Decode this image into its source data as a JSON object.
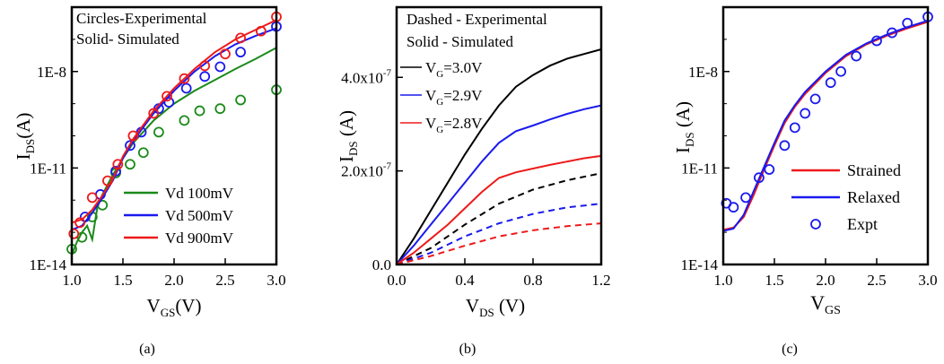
{
  "chart_data": [
    {
      "panel_label": "(a)",
      "type": "line",
      "xlabel_main": "V",
      "xlabel_sub": "GS",
      "xlabel_tail": "(V)",
      "ylabel_main": "I",
      "ylabel_sub": "DS",
      "ylabel_tail": "(A)",
      "xlim": [
        1.0,
        3.0
      ],
      "ylim": [
        1e-14,
        1e-06
      ],
      "yscale": "log",
      "x_ticks": [
        1.0,
        1.5,
        2.0,
        2.5,
        3.0
      ],
      "x_tick_labels": [
        "1.0",
        "1.5",
        "2.0",
        "2.5",
        "3.0"
      ],
      "y_ticks": [
        1e-14,
        1e-11,
        1e-08
      ],
      "y_tick_labels": [
        "1E-14",
        "1E-11",
        "1E-8"
      ],
      "annotations": [
        "Circles-Experimental",
        "Solid- Simulated"
      ],
      "legend_position": "bottom-right",
      "series": [
        {
          "name": "Vd 100mV",
          "color": "#1a8a1a",
          "x": [
            1.0,
            1.05,
            1.1,
            1.15,
            1.2,
            1.25,
            1.3,
            1.4,
            1.5,
            1.6,
            1.8,
            2.0,
            2.2,
            2.4,
            2.6,
            2.8,
            3.0
          ],
          "y": [
            2e-14,
            5e-14,
            1e-13,
            1.6e-13,
            6e-14,
            6e-13,
            1.5e-12,
            6e-12,
            2e-11,
            6e-11,
            3e-10,
            1e-09,
            2.5e-09,
            5.5e-09,
            1.2e-08,
            2.5e-08,
            5.5e-08
          ],
          "expt_x": [
            1.0,
            1.1,
            1.2,
            1.3,
            1.43,
            1.57,
            1.7,
            1.85,
            2.1,
            2.25,
            2.45,
            2.65,
            3.0
          ],
          "expt_y": [
            3e-14,
            7e-14,
            3e-13,
            7e-13,
            7e-12,
            1.3e-11,
            3e-11,
            1.3e-10,
            3e-10,
            6e-10,
            7e-10,
            1.3e-09,
            2.7e-09
          ]
        },
        {
          "name": "Vd 500mV",
          "color": "#1a1aee",
          "x": [
            1.0,
            1.1,
            1.2,
            1.3,
            1.4,
            1.5,
            1.6,
            1.8,
            2.0,
            2.2,
            2.4,
            2.6,
            2.8,
            3.0
          ],
          "y": [
            1.2e-13,
            1.6e-13,
            4e-13,
            1.2e-12,
            4e-12,
            2e-11,
            7e-11,
            5e-10,
            2.5e-09,
            1e-08,
            3e-08,
            7e-08,
            1.3e-07,
            2.2e-07
          ],
          "expt_x": [
            1.13,
            1.28,
            1.43,
            1.57,
            1.68,
            1.85,
            1.95,
            2.12,
            2.3,
            2.45,
            2.65,
            3.0
          ],
          "expt_y": [
            3e-13,
            1.5e-12,
            8e-12,
            5e-11,
            1.3e-10,
            7e-10,
            1.1e-09,
            3e-09,
            7e-09,
            1.4e-08,
            4e-08,
            2.5e-07
          ]
        },
        {
          "name": "Vd 900mV",
          "color": "#ee1a1a",
          "x": [
            1.0,
            1.1,
            1.2,
            1.3,
            1.4,
            1.5,
            1.6,
            1.8,
            2.0,
            2.2,
            2.4,
            2.6,
            2.8,
            3.0
          ],
          "y": [
            2e-13,
            2.5e-13,
            5e-13,
            1.4e-12,
            4.5e-12,
            2.3e-11,
            8e-11,
            6e-10,
            3e-09,
            1.2e-08,
            4e-08,
            1e-07,
            2e-07,
            4e-07
          ],
          "expt_x": [
            1.02,
            1.08,
            1.2,
            1.35,
            1.45,
            1.6,
            1.8,
            1.93,
            2.1,
            2.3,
            2.5,
            2.65,
            2.85,
            3.0
          ],
          "expt_y": [
            9e-14,
            2e-13,
            1.2e-12,
            4e-12,
            1.3e-11,
            1e-10,
            5e-10,
            1.7e-09,
            6e-09,
            1.5e-08,
            3.5e-08,
            1.1e-07,
            1.8e-07,
            5e-07
          ]
        }
      ]
    },
    {
      "panel_label": "(b)",
      "type": "line",
      "xlabel_main": "V",
      "xlabel_sub": "DS",
      "xlabel_tail": " (V)",
      "ylabel_main": "I",
      "ylabel_sub": "DS",
      "ylabel_tail": " (A)",
      "xlim": [
        0.0,
        1.2
      ],
      "ylim": [
        0.0,
        5.5e-07
      ],
      "yscale": "linear",
      "x_ticks": [
        0.0,
        0.4,
        0.8,
        1.2
      ],
      "x_tick_labels": [
        "0.0",
        "0.4",
        "0.8",
        "1.2"
      ],
      "y_ticks": [
        0.0,
        2e-07,
        4e-07
      ],
      "y_tick_labels": [
        {
          "base": "0.0",
          "exp": ""
        },
        {
          "base": "2.0x10",
          "exp": "-7"
        },
        {
          "base": "4.0x10",
          "exp": "-7"
        }
      ],
      "annotations": [
        "Dashed - Experimental",
        "Solid - Simulated"
      ],
      "legend_position": "top-left",
      "series": [
        {
          "name_main": "V",
          "name_sub": "G",
          "name_tail": "=3.0V",
          "color": "#000000",
          "x": [
            0.0,
            0.1,
            0.2,
            0.3,
            0.4,
            0.5,
            0.6,
            0.7,
            0.8,
            0.9,
            1.0,
            1.1,
            1.2
          ],
          "y": [
            0,
            5.5e-08,
            1.15e-07,
            1.75e-07,
            2.35e-07,
            2.9e-07,
            3.4e-07,
            3.8e-07,
            4.05e-07,
            4.25e-07,
            4.4e-07,
            4.5e-07,
            4.6e-07
          ],
          "expt_x": [
            0.0,
            0.2,
            0.4,
            0.6,
            0.8,
            1.0,
            1.2
          ],
          "expt_y": [
            0,
            3.5e-08,
            8.5e-08,
            1.3e-07,
            1.6e-07,
            1.8e-07,
            1.95e-07
          ]
        },
        {
          "name_main": "V",
          "name_sub": "G",
          "name_tail": "=2.9V",
          "color": "#1a1aee",
          "x": [
            0.0,
            0.1,
            0.2,
            0.3,
            0.4,
            0.5,
            0.6,
            0.7,
            0.8,
            0.9,
            1.0,
            1.1,
            1.2
          ],
          "y": [
            0,
            4e-08,
            8.5e-08,
            1.3e-07,
            1.75e-07,
            2.2e-07,
            2.6e-07,
            2.85e-07,
            2.97e-07,
            3.1e-07,
            3.22e-07,
            3.32e-07,
            3.4e-07
          ],
          "expt_x": [
            0.0,
            0.2,
            0.4,
            0.6,
            0.8,
            1.0,
            1.2
          ],
          "expt_y": [
            0,
            2.5e-08,
            6e-08,
            8.8e-08,
            1.08e-07,
            1.22e-07,
            1.3e-07
          ]
        },
        {
          "name_main": "V",
          "name_sub": "G",
          "name_tail": "=2.8V",
          "color": "#ee1a1a",
          "x": [
            0.0,
            0.1,
            0.2,
            0.3,
            0.4,
            0.5,
            0.6,
            0.7,
            0.8,
            0.9,
            1.0,
            1.1,
            1.2
          ],
          "y": [
            0,
            2.5e-08,
            5.5e-08,
            8.5e-08,
            1.2e-07,
            1.55e-07,
            1.85e-07,
            1.97e-07,
            2.05e-07,
            2.13e-07,
            2.2e-07,
            2.27e-07,
            2.32e-07
          ],
          "expt_x": [
            0.0,
            0.2,
            0.4,
            0.6,
            0.8,
            1.0,
            1.2
          ],
          "expt_y": [
            0,
            1.8e-08,
            4e-08,
            6e-08,
            7.3e-08,
            8.2e-08,
            8.8e-08
          ]
        }
      ]
    },
    {
      "panel_label": "(c)",
      "type": "line",
      "xlabel_main": "V",
      "xlabel_sub": "GS",
      "xlabel_tail": "",
      "ylabel_main": "I",
      "ylabel_sub": "DS",
      "ylabel_tail": " (A)",
      "xlim": [
        1.0,
        3.0
      ],
      "ylim": [
        1e-14,
        1e-06
      ],
      "yscale": "log",
      "x_ticks": [
        1.0,
        1.5,
        2.0,
        2.5,
        3.0
      ],
      "x_tick_labels": [
        "1.0",
        "1.5",
        "2.0",
        "2.5",
        "3.0"
      ],
      "y_ticks": [
        1e-14,
        1e-11,
        1e-08
      ],
      "y_tick_labels": [
        "1E-14",
        "1E-11",
        "1E-8"
      ],
      "legend_position": "bottom-right",
      "series": [
        {
          "name": "Strained",
          "color": "#ee1a1a",
          "style": "line",
          "x": [
            1.0,
            1.1,
            1.2,
            1.3,
            1.4,
            1.5,
            1.6,
            1.7,
            1.8,
            2.0,
            2.2,
            2.4,
            2.6,
            2.8,
            3.0
          ],
          "y": [
            1.2e-13,
            1.4e-13,
            3e-13,
            1.5e-12,
            9e-12,
            5e-11,
            2.5e-10,
            8e-10,
            2e-09,
            9e-09,
            3e-08,
            7e-08,
            1.3e-07,
            2.2e-07,
            3.5e-07
          ]
        },
        {
          "name": "Relaxed",
          "color": "#1a1aee",
          "style": "line",
          "x": [
            1.0,
            1.1,
            1.2,
            1.3,
            1.4,
            1.5,
            1.6,
            1.7,
            1.8,
            2.0,
            2.2,
            2.4,
            2.6,
            2.8,
            3.0
          ],
          "y": [
            1.1e-13,
            1.3e-13,
            3.5e-13,
            2e-12,
            1.1e-11,
            6e-11,
            3e-10,
            9e-10,
            2.3e-09,
            1e-08,
            3.3e-08,
            7.5e-08,
            1.4e-07,
            2.4e-07,
            3.8e-07
          ]
        },
        {
          "name": "Expt",
          "color": "#1a1aee",
          "style": "markers",
          "x": [
            1.03,
            1.1,
            1.22,
            1.35,
            1.45,
            1.6,
            1.7,
            1.8,
            1.9,
            2.05,
            2.15,
            2.3,
            2.5,
            2.65,
            2.8,
            3.0
          ],
          "y": [
            8e-13,
            6e-13,
            1.2e-12,
            5e-12,
            9e-12,
            5e-11,
            1.8e-10,
            5e-10,
            1.4e-09,
            4.5e-09,
            1e-08,
            3e-08,
            9e-08,
            1.6e-07,
            3.2e-07,
            5e-07
          ]
        }
      ]
    }
  ]
}
